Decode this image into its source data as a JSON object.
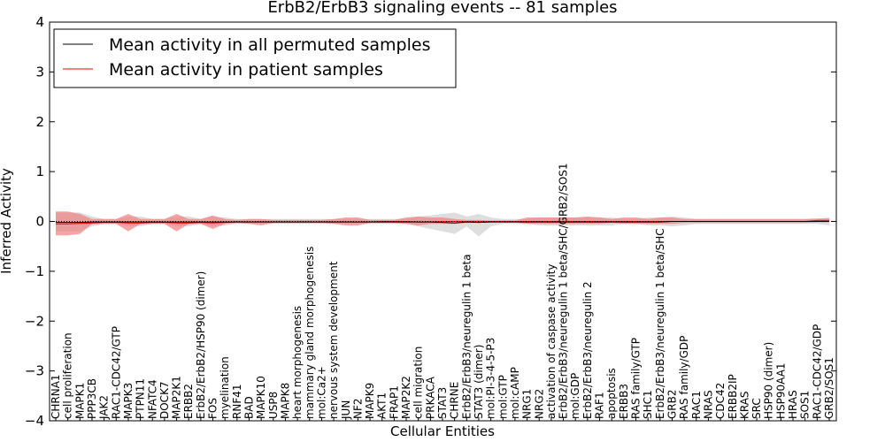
{
  "chart_data": {
    "type": "line",
    "title": "ErbB2/ErbB3 signaling events -- 81 samples",
    "xlabel": "Cellular Entities",
    "ylabel": "Inferred Activity",
    "ylim": [
      -4,
      4
    ],
    "yticks": [
      "−4",
      "−3",
      "−2",
      "−1",
      "0",
      "1",
      "2",
      "3",
      "4"
    ],
    "grid": false,
    "legend_position": "top-left",
    "colors": {
      "permuted": "#000000",
      "patient": "#ff0000",
      "patient_band": "#f08080",
      "permuted_band": "#c8c8c8"
    },
    "categories": [
      "CHRNA1",
      "cell proliferation",
      "MAPK1",
      "PPP3CB",
      "JAK2",
      "RAC1-CDC42/GTP",
      "MAPK3",
      "PTPN11",
      "NFATC4",
      "DOCK7",
      "MAP2K1",
      "ERBB2",
      "ErbB2/ErbB2/HSP90 (dimer)",
      "FOS",
      "myelination",
      "RNF41",
      "BAD",
      "MAPK10",
      "USP8",
      "MAPK8",
      "heart morphogenesis",
      "mammary gland morphogenesis",
      "mol:Ca2+",
      "nervous system development",
      "JUN",
      "NF2",
      "MAPK9",
      "AKT1",
      "FRAP1",
      "MAP2K2",
      "cell migration",
      "PRKACA",
      "STAT3",
      "CHRNE",
      "ErbB2/ErbB3/neuregulin 1 beta",
      "STAT3 (dimer)",
      "mol:PI-3-4-5-P3",
      "mol:GTP",
      "mol:cAMP",
      "NRG1",
      "NRG2",
      "activation of caspase activity",
      "ErbB2/ErbB3/neuregulin 1 beta/SHC/GRB2/SOS1",
      "mol:GDP",
      "ErbB2/ErbB3/neuregulin 2",
      "RAF1",
      "apoptosis",
      "ERBB3",
      "RAS family/GTP",
      "SHC1",
      "ErbB2/ErbB3/neuregulin 1 beta/SHC",
      "GRB2",
      "RAS family/GDP",
      "RAC1",
      "NRAS",
      "CDC42",
      "ERBB2IP",
      "KRAS",
      "SRC",
      "HSP90 (dimer)",
      "HSP90AA1",
      "HRAS",
      "SOS1",
      "RAC1-CDC42/GDP",
      "GRB2/SOS1"
    ],
    "series": [
      {
        "name": "Mean activity in all permuted samples",
        "values": [
          -0.02,
          -0.02,
          -0.02,
          -0.01,
          -0.01,
          -0.01,
          -0.01,
          -0.01,
          -0.01,
          -0.01,
          -0.01,
          -0.01,
          -0.01,
          -0.01,
          -0.01,
          -0.01,
          -0.01,
          -0.01,
          -0.01,
          -0.01,
          -0.01,
          -0.01,
          -0.01,
          -0.01,
          -0.01,
          -0.01,
          -0.01,
          -0.01,
          -0.01,
          -0.01,
          -0.01,
          -0.01,
          -0.02,
          -0.03,
          -0.01,
          -0.02,
          -0.01,
          -0.01,
          -0.01,
          -0.01,
          -0.01,
          -0.01,
          -0.01,
          -0.01,
          -0.01,
          -0.01,
          -0.01,
          -0.01,
          -0.01,
          -0.01,
          -0.01,
          0.0,
          0.0,
          0.0,
          0.0,
          0.0,
          0.0,
          0.0,
          0.0,
          0.0,
          0.0,
          0.0,
          0.0,
          0.0,
          0.0
        ],
        "band_low": [
          -0.2,
          -0.2,
          -0.2,
          -0.1,
          -0.05,
          -0.05,
          -0.1,
          -0.1,
          -0.05,
          -0.05,
          -0.1,
          -0.1,
          -0.05,
          -0.1,
          -0.08,
          -0.05,
          -0.05,
          -0.05,
          -0.05,
          -0.05,
          -0.05,
          -0.05,
          -0.05,
          -0.05,
          -0.05,
          -0.05,
          -0.05,
          -0.05,
          -0.05,
          -0.05,
          -0.1,
          -0.15,
          -0.2,
          -0.25,
          -0.1,
          -0.3,
          -0.1,
          -0.05,
          -0.05,
          -0.05,
          -0.08,
          -0.08,
          -0.08,
          -0.08,
          -0.08,
          -0.08,
          -0.08,
          -0.05,
          -0.05,
          -0.08,
          -0.08,
          -0.1,
          -0.08,
          -0.05,
          -0.05,
          -0.05,
          -0.05,
          -0.05,
          -0.05,
          -0.05,
          -0.05,
          -0.05,
          -0.05,
          -0.05,
          -0.08
        ],
        "band_high": [
          0.18,
          0.18,
          0.18,
          0.1,
          0.05,
          0.05,
          0.1,
          0.1,
          0.05,
          0.05,
          0.1,
          0.1,
          0.05,
          0.1,
          0.08,
          0.05,
          0.05,
          0.05,
          0.05,
          0.05,
          0.05,
          0.05,
          0.05,
          0.05,
          0.05,
          0.05,
          0.05,
          0.05,
          0.05,
          0.05,
          0.1,
          0.12,
          0.15,
          0.18,
          0.1,
          0.15,
          0.08,
          0.05,
          0.05,
          0.05,
          0.08,
          0.08,
          0.08,
          0.08,
          0.08,
          0.08,
          0.08,
          0.05,
          0.05,
          0.08,
          0.08,
          0.1,
          0.08,
          0.05,
          0.05,
          0.05,
          0.05,
          0.05,
          0.05,
          0.05,
          0.05,
          0.05,
          0.05,
          0.05,
          0.08
        ]
      },
      {
        "name": "Mean activity in patient samples",
        "values": [
          -0.05,
          -0.05,
          -0.04,
          -0.03,
          -0.02,
          -0.02,
          -0.03,
          -0.03,
          -0.02,
          -0.02,
          -0.03,
          -0.03,
          -0.02,
          -0.03,
          -0.02,
          -0.01,
          -0.01,
          -0.01,
          -0.01,
          -0.01,
          -0.01,
          -0.01,
          -0.01,
          -0.01,
          -0.01,
          -0.01,
          -0.01,
          0.0,
          0.0,
          0.0,
          -0.01,
          -0.01,
          0.0,
          0.0,
          0.0,
          0.0,
          0.0,
          0.0,
          0.0,
          0.0,
          0.0,
          0.0,
          0.0,
          0.0,
          0.0,
          0.0,
          0.0,
          0.0,
          0.0,
          0.0,
          0.0,
          0.0,
          0.0,
          0.0,
          0.0,
          0.0,
          0.0,
          0.0,
          0.0,
          0.0,
          0.0,
          0.0,
          0.0,
          0.02,
          0.02
        ],
        "band_low": [
          -0.28,
          -0.28,
          -0.25,
          -0.05,
          -0.05,
          -0.05,
          -0.2,
          -0.05,
          -0.05,
          -0.05,
          -0.2,
          -0.05,
          -0.05,
          -0.15,
          -0.05,
          -0.03,
          -0.05,
          -0.08,
          -0.03,
          -0.03,
          -0.03,
          -0.03,
          -0.03,
          -0.05,
          -0.08,
          -0.08,
          -0.03,
          -0.03,
          -0.03,
          -0.05,
          -0.08,
          -0.05,
          -0.05,
          -0.05,
          -0.03,
          -0.03,
          -0.02,
          -0.02,
          -0.02,
          -0.05,
          -0.05,
          -0.05,
          -0.05,
          -0.05,
          -0.05,
          -0.05,
          -0.03,
          -0.05,
          -0.05,
          -0.05,
          -0.05,
          -0.05,
          -0.03,
          -0.03,
          -0.03,
          -0.03,
          -0.03,
          -0.03,
          -0.03,
          -0.03,
          -0.03,
          -0.03,
          -0.03,
          -0.02,
          -0.02
        ],
        "band_high": [
          0.2,
          0.2,
          0.15,
          0.05,
          0.05,
          0.05,
          0.15,
          0.05,
          0.05,
          0.05,
          0.15,
          0.05,
          0.05,
          0.12,
          0.05,
          0.03,
          0.05,
          0.05,
          0.03,
          0.03,
          0.03,
          0.03,
          0.03,
          0.05,
          0.08,
          0.08,
          0.03,
          0.03,
          0.03,
          0.08,
          0.1,
          0.08,
          0.08,
          0.05,
          0.03,
          0.03,
          0.02,
          0.02,
          0.02,
          0.08,
          0.08,
          0.08,
          0.08,
          0.08,
          0.1,
          0.08,
          0.05,
          0.08,
          0.08,
          0.05,
          0.08,
          0.08,
          0.05,
          0.05,
          0.05,
          0.05,
          0.05,
          0.05,
          0.05,
          0.05,
          0.05,
          0.05,
          0.05,
          0.06,
          0.06
        ]
      }
    ]
  }
}
